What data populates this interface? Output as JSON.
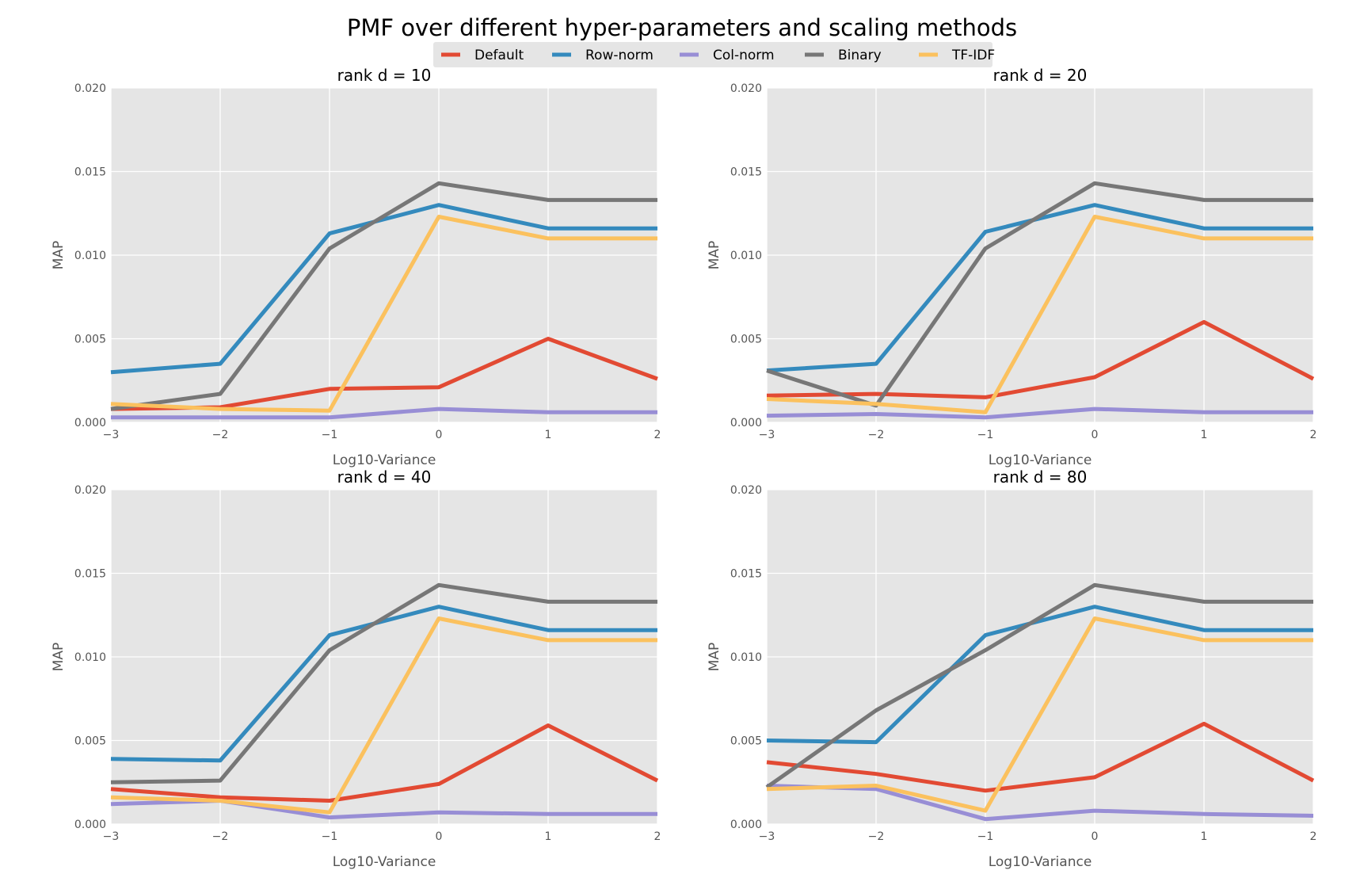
{
  "figure": {
    "title": "PMF over different hyper-parameters and scaling methods"
  },
  "legend": {
    "placement": "top-center",
    "entries": [
      "Default",
      "Row-norm",
      "Col-norm",
      "Binary",
      "TF-IDF"
    ]
  },
  "colors": {
    "Default": "#e24a33",
    "Row-norm": "#348abd",
    "Col-norm": "#988ed5",
    "Binary": "#777777",
    "TF-IDF": "#fbc15e",
    "panel_background": "#e5e5e5",
    "grid": "#ffffff"
  },
  "chart_data": [
    {
      "type": "line",
      "title": "rank d = 10",
      "xlabel": "Log10-Variance",
      "ylabel": "MAP",
      "x": [
        -3,
        -2,
        -1,
        0,
        1,
        2
      ],
      "xlim": [
        -3,
        2
      ],
      "ylim": [
        0,
        0.02
      ],
      "xticks": [
        "−3",
        "−2",
        "−1",
        "0",
        "1",
        "2"
      ],
      "yticks": [
        "0.000",
        "0.005",
        "0.010",
        "0.015",
        "0.020"
      ],
      "grid": true,
      "series": [
        {
          "name": "Default",
          "values": [
            0.0008,
            0.0009,
            0.002,
            0.0021,
            0.005,
            0.0026
          ]
        },
        {
          "name": "Row-norm",
          "values": [
            0.003,
            0.0035,
            0.0113,
            0.013,
            0.0116,
            0.0116
          ]
        },
        {
          "name": "Col-norm",
          "values": [
            0.0003,
            0.0003,
            0.0003,
            0.0008,
            0.0006,
            0.0006
          ]
        },
        {
          "name": "Binary",
          "values": [
            0.0008,
            0.0017,
            0.0104,
            0.0143,
            0.0133,
            0.0133
          ]
        },
        {
          "name": "TF-IDF",
          "values": [
            0.0011,
            0.0008,
            0.0007,
            0.0123,
            0.011,
            0.011
          ]
        }
      ]
    },
    {
      "type": "line",
      "title": "rank d = 20",
      "xlabel": "Log10-Variance",
      "ylabel": "MAP",
      "x": [
        -3,
        -2,
        -1,
        0,
        1,
        2
      ],
      "xlim": [
        -3,
        2
      ],
      "ylim": [
        0,
        0.02
      ],
      "xticks": [
        "−3",
        "−2",
        "−1",
        "0",
        "1",
        "2"
      ],
      "yticks": [
        "0.000",
        "0.005",
        "0.010",
        "0.015",
        "0.020"
      ],
      "grid": true,
      "series": [
        {
          "name": "Default",
          "values": [
            0.0016,
            0.0017,
            0.0015,
            0.0027,
            0.006,
            0.0026
          ]
        },
        {
          "name": "Row-norm",
          "values": [
            0.0031,
            0.0035,
            0.0114,
            0.013,
            0.0116,
            0.0116
          ]
        },
        {
          "name": "Col-norm",
          "values": [
            0.0004,
            0.0005,
            0.0003,
            0.0008,
            0.0006,
            0.0006
          ]
        },
        {
          "name": "Binary",
          "values": [
            0.0031,
            0.001,
            0.0104,
            0.0143,
            0.0133,
            0.0133
          ]
        },
        {
          "name": "TF-IDF",
          "values": [
            0.0014,
            0.0011,
            0.0006,
            0.0123,
            0.011,
            0.011
          ]
        }
      ]
    },
    {
      "type": "line",
      "title": "rank d = 40",
      "xlabel": "Log10-Variance",
      "ylabel": "MAP",
      "x": [
        -3,
        -2,
        -1,
        0,
        1,
        2
      ],
      "xlim": [
        -3,
        2
      ],
      "ylim": [
        0,
        0.02
      ],
      "xticks": [
        "−3",
        "−2",
        "−1",
        "0",
        "1",
        "2"
      ],
      "yticks": [
        "0.000",
        "0.005",
        "0.010",
        "0.015",
        "0.020"
      ],
      "grid": true,
      "series": [
        {
          "name": "Default",
          "values": [
            0.0021,
            0.0016,
            0.0014,
            0.0024,
            0.0059,
            0.0026
          ]
        },
        {
          "name": "Row-norm",
          "values": [
            0.0039,
            0.0038,
            0.0113,
            0.013,
            0.0116,
            0.0116
          ]
        },
        {
          "name": "Col-norm",
          "values": [
            0.0012,
            0.0014,
            0.0004,
            0.0007,
            0.0006,
            0.0006
          ]
        },
        {
          "name": "Binary",
          "values": [
            0.0025,
            0.0026,
            0.0104,
            0.0143,
            0.0133,
            0.0133
          ]
        },
        {
          "name": "TF-IDF",
          "values": [
            0.0016,
            0.0014,
            0.0007,
            0.0123,
            0.011,
            0.011
          ]
        }
      ]
    },
    {
      "type": "line",
      "title": "rank d = 80",
      "xlabel": "Log10-Variance",
      "ylabel": "MAP",
      "x": [
        -3,
        -2,
        -1,
        0,
        1,
        2
      ],
      "xlim": [
        -3,
        2
      ],
      "ylim": [
        0,
        0.02
      ],
      "xticks": [
        "−3",
        "−2",
        "−1",
        "0",
        "1",
        "2"
      ],
      "yticks": [
        "0.000",
        "0.005",
        "0.010",
        "0.015",
        "0.020"
      ],
      "grid": true,
      "series": [
        {
          "name": "Default",
          "values": [
            0.0037,
            0.003,
            0.002,
            0.0028,
            0.006,
            0.0026
          ]
        },
        {
          "name": "Row-norm",
          "values": [
            0.005,
            0.0049,
            0.0113,
            0.013,
            0.0116,
            0.0116
          ]
        },
        {
          "name": "Col-norm",
          "values": [
            0.0023,
            0.0021,
            0.0003,
            0.0008,
            0.0006,
            0.0005
          ]
        },
        {
          "name": "Binary",
          "values": [
            0.0022,
            0.0068,
            0.0104,
            0.0143,
            0.0133,
            0.0133
          ]
        },
        {
          "name": "TF-IDF",
          "values": [
            0.0021,
            0.0023,
            0.0008,
            0.0123,
            0.011,
            0.011
          ]
        }
      ]
    }
  ]
}
